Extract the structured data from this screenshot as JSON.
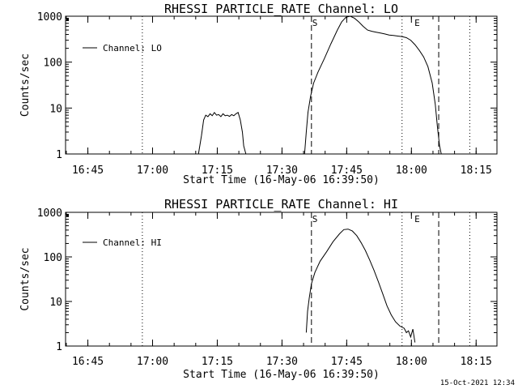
{
  "chart_data": [
    {
      "type": "line",
      "title": "RHESSI PARTICLE_RATE Channel: LO",
      "xlabel": "Start Time (16-May-06 16:39:50)",
      "ylabel": "Counts/sec",
      "yscale": "log",
      "ylim": [
        1,
        1000
      ],
      "xlim_minutes_after_start": [
        0,
        100
      ],
      "y_ticks": [
        1,
        10,
        100,
        1000
      ],
      "y_tick_labels": [
        "1",
        "10",
        "100",
        "1000"
      ],
      "x_ticks": [
        5.17,
        20.17,
        35.17,
        50.17,
        65.17,
        80.17,
        95.17
      ],
      "x_tick_labels": [
        "16:45",
        "17:00",
        "17:15",
        "17:30",
        "17:45",
        "18:00",
        "18:15"
      ],
      "legend": "Channel: LO",
      "markers": [
        {
          "label": "S",
          "x": 57.0,
          "style": "dashed"
        },
        {
          "label": "E",
          "x": 80.7,
          "style": "dashed"
        }
      ],
      "dashed_lines": [
        57.0,
        86.5
      ],
      "dotted_lines": [
        17.8,
        78.0,
        93.7
      ],
      "series": [
        {
          "name": "Channel: LO",
          "x": [
            30.8,
            31.5,
            32.0,
            32.5,
            33.0,
            33.5,
            34.0,
            34.5,
            35.0,
            35.5,
            36.0,
            36.5,
            37.0,
            37.5,
            38.0,
            38.5,
            39.0,
            39.5,
            40.0,
            40.5,
            41.0,
            41.3,
            41.8,
            55.4,
            55.8,
            56.2,
            56.8,
            57.5,
            58.5,
            60.0,
            61.5,
            63.0,
            64.0,
            65.0,
            66.0,
            67.0,
            68.0,
            69.0,
            70.0,
            71.0,
            72.0,
            73.0,
            74.0,
            75.0,
            76.0,
            77.0,
            78.0,
            79.0,
            80.0,
            81.0,
            82.0,
            83.0,
            84.0,
            85.0,
            85.7,
            86.2,
            86.7,
            87.1
          ],
          "values": [
            1,
            2.5,
            5.5,
            7.0,
            6.5,
            7.5,
            6.8,
            8.0,
            7.0,
            7.2,
            6.5,
            7.5,
            6.8,
            7.0,
            6.6,
            7.2,
            6.8,
            7.5,
            8.0,
            5.5,
            3.0,
            1.5,
            1,
            1,
            3,
            8,
            18,
            35,
            60,
            120,
            250,
            500,
            750,
            950,
            1000,
            900,
            750,
            600,
            500,
            470,
            450,
            430,
            410,
            390,
            380,
            370,
            360,
            340,
            300,
            240,
            180,
            130,
            80,
            35,
            12,
            4,
            1.5,
            1
          ]
        }
      ]
    },
    {
      "type": "line",
      "title": "RHESSI PARTICLE_RATE Channel: HI",
      "xlabel": "Start Time (16-May-06 16:39:50)",
      "ylabel": "Counts/sec",
      "yscale": "log",
      "ylim": [
        1,
        1000
      ],
      "xlim_minutes_after_start": [
        0,
        100
      ],
      "y_ticks": [
        1,
        10,
        100,
        1000
      ],
      "y_tick_labels": [
        "1",
        "10",
        "100",
        "1000"
      ],
      "x_ticks": [
        5.17,
        20.17,
        35.17,
        50.17,
        65.17,
        80.17,
        95.17
      ],
      "x_tick_labels": [
        "16:45",
        "17:00",
        "17:15",
        "17:30",
        "17:45",
        "18:00",
        "18:15"
      ],
      "legend": "Channel: HI",
      "markers": [
        {
          "label": "S",
          "x": 57.0,
          "style": "dashed"
        },
        {
          "label": "E",
          "x": 80.7,
          "style": "dashed"
        }
      ],
      "dashed_lines": [
        57.0,
        86.5
      ],
      "dotted_lines": [
        17.8,
        78.0,
        93.7
      ],
      "series": [
        {
          "name": "Channel: HI",
          "x": [
            55.8,
            56.1,
            56.5,
            57.0,
            57.8,
            59.0,
            60.5,
            62.0,
            63.5,
            64.5,
            65.5,
            66.5,
            67.5,
            68.5,
            69.5,
            70.5,
            71.5,
            72.5,
            73.5,
            74.5,
            75.5,
            76.5,
            77.5,
            78.5,
            79.0,
            79.5,
            80.0,
            80.5,
            81.0
          ],
          "values": [
            2,
            6,
            12,
            25,
            45,
            80,
            130,
            220,
            330,
            410,
            420,
            380,
            300,
            210,
            140,
            85,
            50,
            28,
            15,
            8,
            5,
            3.5,
            2.8,
            2.5,
            2.0,
            2.2,
            1.6,
            2.4,
            1.2
          ]
        }
      ]
    }
  ],
  "timestamp": "15-Oct-2021 12:34"
}
